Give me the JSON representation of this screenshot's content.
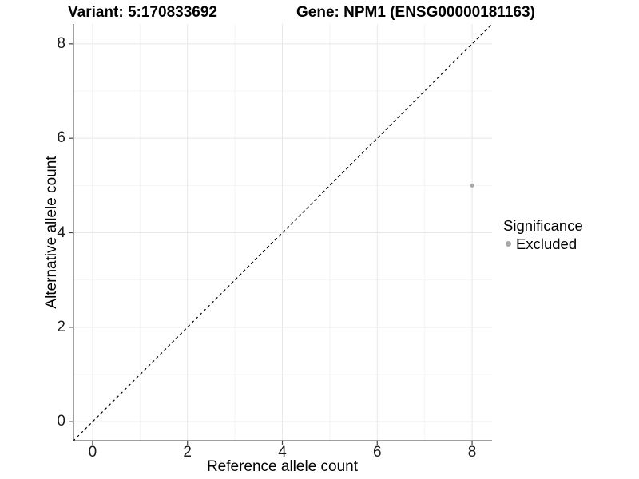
{
  "header": {
    "variant_title": "Variant: 5:170833692",
    "gene_title": "Gene: NPM1 (ENSG00000181163)"
  },
  "legend": {
    "title": "Significance",
    "items": [
      {
        "label": "Excluded",
        "color": "#a9a9a9"
      }
    ]
  },
  "chart_data": {
    "type": "scatter",
    "title": "Variant: 5:170833692 | Gene: NPM1 (ENSG00000181163)",
    "xlabel": "Reference allele count",
    "ylabel": "Alternative allele count",
    "xlim": [
      -0.42,
      8.42
    ],
    "ylim": [
      -0.42,
      8.42
    ],
    "x_ticks": [
      0,
      2,
      4,
      6,
      8
    ],
    "y_ticks": [
      0,
      2,
      4,
      6,
      8
    ],
    "x_minor_ticks": [
      1,
      3,
      5,
      7
    ],
    "y_minor_ticks": [
      1,
      3,
      5,
      7
    ],
    "grid": "major and minor light-grey gridlines on white panel",
    "legend_position": "right",
    "series": [
      {
        "name": "Excluded",
        "color": "#a9a9a9",
        "point_radius": 2.6,
        "points": [
          {
            "x": 8,
            "y": 5
          }
        ]
      }
    ],
    "reference_line": {
      "type": "identity y=x",
      "style": "dashed",
      "color": "#000000"
    },
    "colors": {
      "background": "#ffffff",
      "grid_major": "#e8e8e8",
      "grid_minor": "#f4f4f4",
      "axis": "#404040",
      "tick_label": "#1a1a1a",
      "point": "#a9a9a9"
    }
  }
}
